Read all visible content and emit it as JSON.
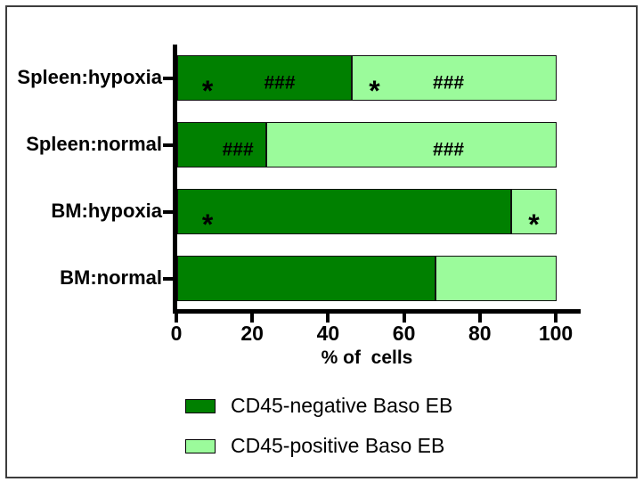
{
  "figure": {
    "background": "#ffffff",
    "border_color": "#3d3d3d"
  },
  "chart_data": {
    "type": "bar",
    "orientation": "horizontal",
    "stacked": true,
    "title": "",
    "xlabel": "% of  cells",
    "ylabel": "",
    "categories": [
      "Spleen:hypoxia",
      "Spleen:normal",
      "BM:hypoxia",
      "BM:normal"
    ],
    "series": [
      {
        "name": "CD45-negative Baso EB",
        "color": "#008000",
        "values": [
          46,
          23.5,
          88,
          68
        ]
      },
      {
        "name": "CD45-positive Baso EB",
        "color": "#9BFB9B",
        "values": [
          54,
          76.5,
          12,
          32
        ]
      }
    ],
    "xticks": [
      0,
      20,
      40,
      60,
      80,
      100
    ],
    "xlim": [
      0,
      107
    ],
    "grid": false,
    "legend_position": "bottom",
    "annotations": [
      {
        "row": 0,
        "x": 8,
        "text": "*"
      },
      {
        "row": 0,
        "x": 27,
        "text": "###"
      },
      {
        "row": 0,
        "x": 52,
        "text": "*"
      },
      {
        "row": 0,
        "x": 71.5,
        "text": "###"
      },
      {
        "row": 1,
        "x": 16,
        "text": "###"
      },
      {
        "row": 1,
        "x": 71.5,
        "text": "###"
      },
      {
        "row": 2,
        "x": 8,
        "text": "*"
      },
      {
        "row": 2,
        "x": 94,
        "text": "*"
      }
    ]
  }
}
